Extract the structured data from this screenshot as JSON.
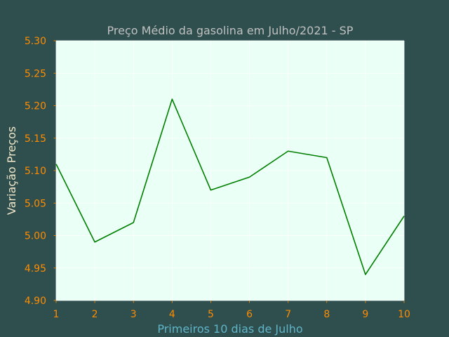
{
  "chart_data": {
    "type": "line",
    "title": "Preço Médio da gasolina em Julho/2021 - SP",
    "xlabel": "Primeiros 10 dias de Julho",
    "ylabel": "Variação Preços",
    "x": [
      1,
      2,
      3,
      4,
      5,
      6,
      7,
      8,
      9,
      10
    ],
    "series": [
      {
        "values": [
          5.11,
          4.99,
          5.02,
          5.21,
          5.07,
          5.09,
          5.13,
          5.12,
          4.94,
          5.03
        ]
      }
    ],
    "xlim": [
      1,
      10
    ],
    "ylim": [
      4.9,
      5.3
    ],
    "xticks": [
      "1",
      "2",
      "3",
      "4",
      "5",
      "6",
      "7",
      "8",
      "9",
      "10"
    ],
    "yticks": [
      "4.90",
      "4.95",
      "5.00",
      "5.05",
      "5.10",
      "5.15",
      "5.20",
      "5.25",
      "5.30"
    ],
    "grid": true,
    "legend": "none",
    "colors": {
      "figure_background": "#2f4f4f",
      "plot_background": "#eafff5",
      "line": "#008000",
      "grid": "#ffffff",
      "title": "#c0c0c0",
      "tick_labels": "#ff8c00",
      "xlabel": "#5fb4c8",
      "ylabel": "#f0e6c8"
    }
  }
}
